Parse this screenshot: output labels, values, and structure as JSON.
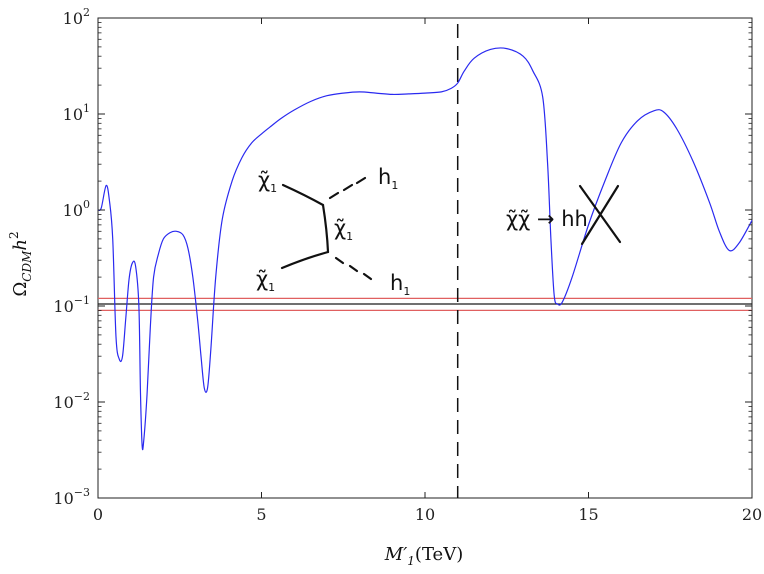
{
  "chart_data": {
    "type": "line",
    "title": "",
    "xlabel": "M′₁(TeV)",
    "ylabel": "Ω_CDM h²",
    "xlim": [
      0,
      20
    ],
    "ylim": [
      0.001,
      100
    ],
    "yscale": "log",
    "grid": false,
    "x_ticks": [
      0,
      5,
      10,
      15,
      20
    ],
    "y_tick_exponents": [
      -3,
      -2,
      -1,
      0,
      1,
      2
    ],
    "series": [
      {
        "color": "#2a2af0",
        "x": [
          0.0,
          0.1,
          0.25,
          0.35,
          0.45,
          0.55,
          0.65,
          0.75,
          0.85,
          0.95,
          1.05,
          1.15,
          1.25,
          1.3,
          1.35,
          1.4,
          1.5,
          1.6,
          1.7,
          1.85,
          2.0,
          2.2,
          2.4,
          2.6,
          2.75,
          2.9,
          3.05,
          3.15,
          3.25,
          3.35,
          3.45,
          3.6,
          3.8,
          4.1,
          4.4,
          4.7,
          5.0,
          5.3,
          5.6,
          6.0,
          6.5,
          7.0,
          7.5,
          8.0,
          8.5,
          9.0,
          9.5,
          10.0,
          10.5,
          10.8,
          11.0,
          11.2,
          11.5,
          12.0,
          12.5,
          13.0,
          13.3,
          13.6,
          13.75,
          13.85,
          13.95,
          14.05,
          14.2,
          14.5,
          15.0,
          15.5,
          16.0,
          16.5,
          17.0,
          17.3,
          17.7,
          18.2,
          18.7,
          19.0,
          19.3,
          19.6,
          20.0
        ],
        "y": [
          1.0,
          1.05,
          1.8,
          1.25,
          0.5,
          0.048,
          0.028,
          0.03,
          0.075,
          0.19,
          0.28,
          0.26,
          0.1,
          0.012,
          0.0035,
          0.004,
          0.012,
          0.06,
          0.2,
          0.35,
          0.5,
          0.58,
          0.6,
          0.55,
          0.4,
          0.2,
          0.07,
          0.03,
          0.014,
          0.014,
          0.035,
          0.2,
          0.8,
          2.0,
          3.5,
          5.0,
          6.2,
          7.5,
          9.0,
          11.0,
          13.5,
          15.5,
          16.5,
          17.0,
          16.5,
          16.0,
          16.2,
          16.5,
          17.0,
          18.5,
          21.0,
          28.0,
          38.0,
          47.0,
          48.0,
          40.0,
          28.0,
          15.0,
          3.0,
          0.5,
          0.13,
          0.105,
          0.11,
          0.2,
          0.7,
          2.0,
          5.0,
          8.5,
          10.8,
          10.5,
          7.0,
          3.2,
          1.2,
          0.6,
          0.38,
          0.45,
          0.78
        ]
      }
    ],
    "hlines": [
      {
        "y": 0.12,
        "color": "#e06060"
      },
      {
        "y": 0.105,
        "color": "#1a1a1a"
      },
      {
        "y": 0.09,
        "color": "#e06060"
      }
    ],
    "vlines": [
      {
        "x": 11.0,
        "style": "dashed",
        "color": "#111111"
      }
    ],
    "annotations": {
      "diagram_left": {
        "top_right": "h",
        "bottom_right": "h",
        "top_left": "χ̃",
        "bottom_left": "χ̃",
        "mediator": "χ̃",
        "subscript": "1"
      },
      "diagram_right": {
        "text": "χ̃χ̃ → hh",
        "subscript": "1",
        "crossed": true
      }
    }
  }
}
